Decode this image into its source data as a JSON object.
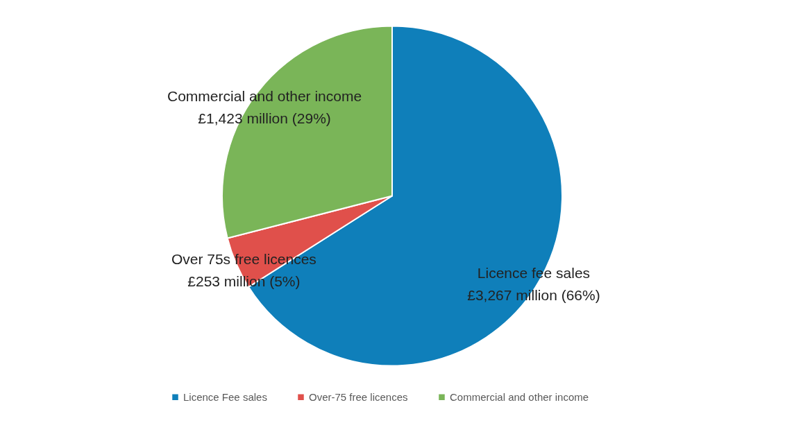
{
  "chart_data": {
    "type": "pie",
    "categories": [
      "Licence Fee sales",
      "Over-75 free licences",
      "Commercial and other income"
    ],
    "values": [
      66,
      5,
      29
    ],
    "colors": [
      "#0f7fba",
      "#e0504b",
      "#7ab558"
    ],
    "value_labels": [
      "Licence fee sales\n£3,267 million (66%)",
      "Over 75s free licences\n£253 million (5%)",
      "Commercial and other income\n£1,423 million (29%)"
    ],
    "legend": "bottom"
  }
}
